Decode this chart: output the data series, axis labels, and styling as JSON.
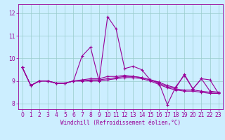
{
  "title": "",
  "xlabel": "Windchill (Refroidissement éolien,°C)",
  "ylabel": "",
  "bg_color": "#cceeff",
  "line_color": "#990099",
  "grid_color": "#99cccc",
  "x_ticks": [
    0,
    1,
    2,
    3,
    4,
    5,
    6,
    7,
    8,
    9,
    10,
    11,
    12,
    13,
    14,
    15,
    16,
    17,
    18,
    19,
    20,
    21,
    22,
    23
  ],
  "y_ticks": [
    8,
    9,
    10,
    11,
    12
  ],
  "xlim": [
    -0.5,
    23.5
  ],
  "ylim": [
    7.75,
    12.4
  ],
  "series": [
    [
      9.6,
      8.8,
      9.0,
      9.0,
      8.9,
      8.9,
      9.0,
      10.1,
      10.5,
      9.0,
      11.85,
      11.3,
      9.55,
      9.65,
      9.5,
      9.05,
      8.95,
      7.95,
      8.75,
      9.25,
      8.65,
      9.1,
      9.05,
      8.45
    ],
    [
      9.6,
      8.8,
      9.0,
      9.0,
      8.9,
      8.9,
      9.0,
      9.0,
      9.0,
      9.0,
      9.05,
      9.1,
      9.15,
      9.15,
      9.1,
      9.0,
      8.85,
      8.7,
      8.6,
      8.55,
      8.55,
      8.5,
      8.45,
      8.45
    ],
    [
      9.6,
      8.8,
      9.0,
      9.0,
      8.9,
      8.9,
      9.0,
      9.0,
      9.05,
      9.05,
      9.1,
      9.15,
      9.2,
      9.2,
      9.15,
      9.05,
      8.9,
      8.75,
      8.65,
      8.6,
      8.6,
      8.55,
      8.5,
      8.5
    ],
    [
      9.6,
      8.8,
      9.0,
      9.0,
      8.9,
      8.9,
      9.0,
      9.05,
      9.1,
      9.1,
      9.2,
      9.2,
      9.25,
      9.2,
      9.15,
      9.05,
      8.95,
      8.8,
      8.7,
      9.3,
      8.65,
      9.1,
      8.55,
      8.5
    ]
  ],
  "xlabel_fontsize": 5.5,
  "tick_fontsize": 5.5,
  "marker_size": 3,
  "linewidth": 0.8
}
